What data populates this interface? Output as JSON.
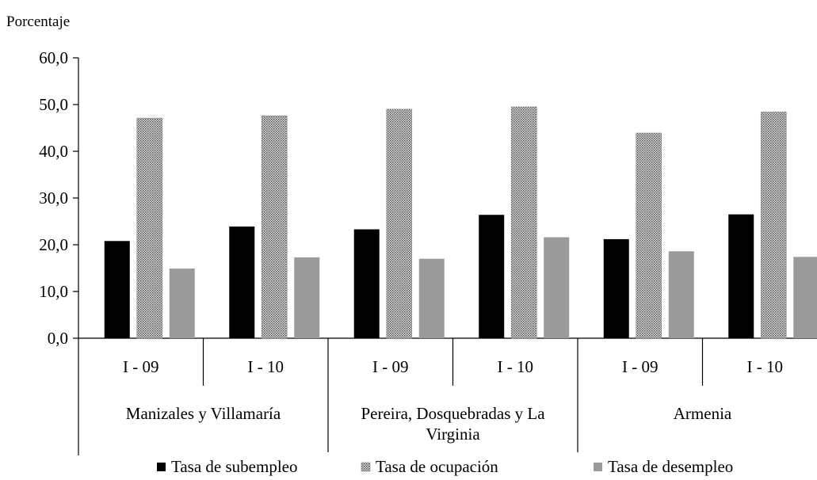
{
  "chart_data": {
    "type": "bar",
    "ylabel": "Porcentaje",
    "ylim": [
      0,
      60
    ],
    "yticks": [
      "0,0",
      "10,0",
      "20,0",
      "30,0",
      "40,0",
      "50,0",
      "60,0"
    ],
    "groups": [
      {
        "label": "Manizales y Villamaría",
        "categories": [
          "I - 09",
          "I - 10"
        ]
      },
      {
        "label": "Pereira, Dosquebradas y La Virginia",
        "categories": [
          "I - 09",
          "I - 10"
        ]
      },
      {
        "label": "Armenia",
        "categories": [
          "I - 09",
          "I - 10"
        ]
      }
    ],
    "series": [
      {
        "name": "Tasa de subempleo",
        "color": "#000000",
        "pattern": "solid",
        "values": [
          20.8,
          23.9,
          23.3,
          26.4,
          21.2,
          26.5
        ]
      },
      {
        "name": "Tasa de ocupación",
        "color": "#8c8c8c",
        "pattern": "dotted",
        "values": [
          47.1,
          47.6,
          49.0,
          49.5,
          43.9,
          48.4
        ]
      },
      {
        "name": "Tasa de desempleo",
        "color": "#9a9a9a",
        "pattern": "solid",
        "values": [
          14.9,
          17.3,
          17.0,
          21.6,
          18.6,
          17.4
        ]
      }
    ],
    "legend_position": "bottom"
  }
}
